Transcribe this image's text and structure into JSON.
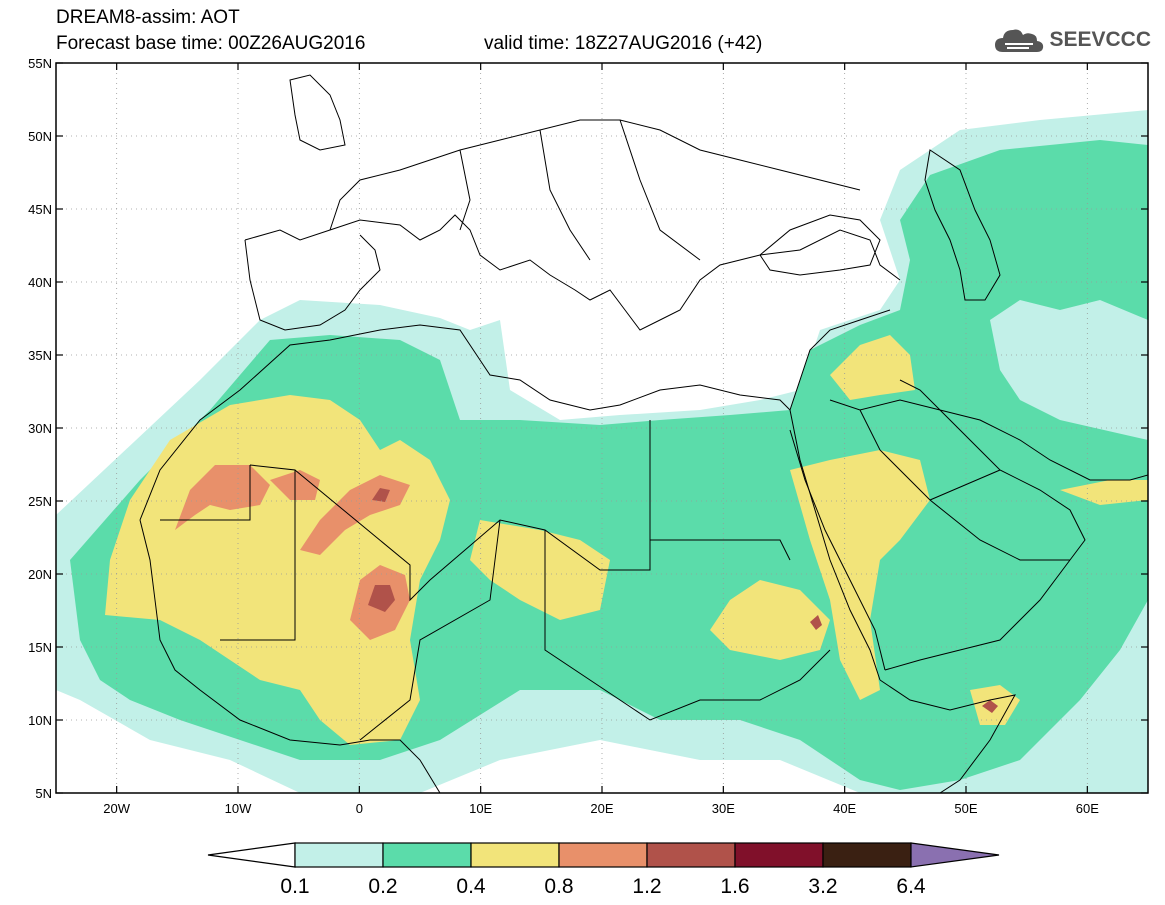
{
  "header": {
    "title_line1": "DREAM8-assim: AOT",
    "title_line2_base": "Forecast base time: 00Z26AUG2016",
    "title_line2_valid": "valid time: 18Z27AUG2016 (+42)",
    "logo_text": "SEEVCCC",
    "logo_icon": "cloud-icon"
  },
  "axes": {
    "lat_labels": [
      "55N",
      "50N",
      "45N",
      "40N",
      "35N",
      "30N",
      "25N",
      "20N",
      "15N",
      "10N",
      "5N"
    ],
    "lon_labels": [
      "20W",
      "10W",
      "0",
      "10E",
      "20E",
      "30E",
      "40E",
      "50E",
      "60E"
    ],
    "lat_range": [
      5,
      55
    ],
    "lon_range": [
      -25,
      65
    ]
  },
  "colorbar": {
    "labels": [
      "0.1",
      "0.2",
      "0.4",
      "0.8",
      "1.2",
      "1.6",
      "3.2",
      "6.4"
    ],
    "colors": [
      "#c2f0e8",
      "#5bdcaa",
      "#f2e47a",
      "#e8906a",
      "#b0524a",
      "#80102a",
      "#3a2012",
      "#8a70b0"
    ],
    "under_color": "#ffffff"
  },
  "field_colors": {
    "c01": "#c2f0e8",
    "c02": "#5bdcaa",
    "c04": "#f2e47a",
    "c08": "#e8906a",
    "c12": "#b0524a"
  }
}
